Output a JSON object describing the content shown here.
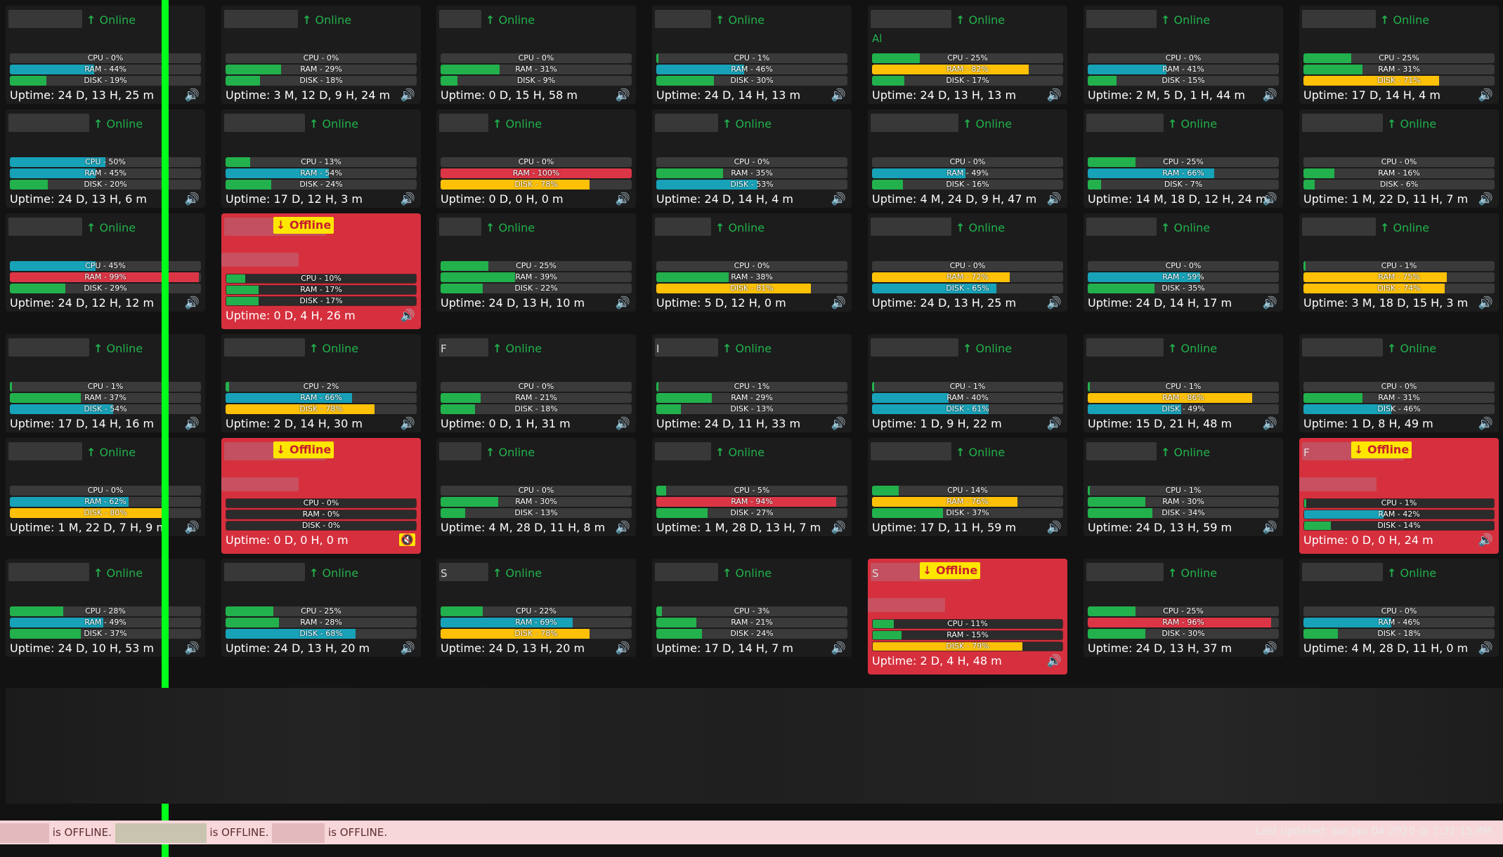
{
  "status_labels": {
    "online": "Online",
    "offline": "Offline"
  },
  "icons": {
    "online": "arrow-up-icon",
    "offline": "arrow-down-icon",
    "sound": "speaker-icon",
    "muted": "speaker-muted-icon"
  },
  "colors": {
    "green": "#22b14c",
    "teal": "#17a2b8",
    "yellow": "#ffc107",
    "red": "#dc3545",
    "offline_bg": "#d6303e",
    "offline_badge": "#ffe600",
    "monitor_line": "#00ff1a"
  },
  "servers": [
    {
      "status": "online",
      "cpu": 0,
      "ram": 44,
      "disk": 19,
      "uptime": "Uptime: 24 D, 13 H, 25 m"
    },
    {
      "status": "online",
      "cpu": 0,
      "ram": 29,
      "disk": 18,
      "uptime": "Uptime: 3 M, 12 D, 9 H, 24 m"
    },
    {
      "status": "online",
      "cpu": 0,
      "ram": 31,
      "disk": 9,
      "uptime": "Uptime: 0 D, 15 H, 58 m"
    },
    {
      "status": "online",
      "cpu": 1,
      "ram": 46,
      "disk": 30,
      "uptime": "Uptime: 24 D, 14 H, 13 m"
    },
    {
      "status": "online",
      "name_fragment": "Al",
      "cpu": 25,
      "ram": 82,
      "disk": 17,
      "uptime": "Uptime: 24 D, 13 H, 13 m"
    },
    {
      "status": "online",
      "cpu": 0,
      "ram": 41,
      "disk": 15,
      "uptime": "Uptime: 2 M, 5 D, 1 H, 44 m"
    },
    {
      "status": "online",
      "cpu": 25,
      "ram": 31,
      "disk": 71,
      "uptime": "Uptime: 17 D, 14 H, 4 m"
    },
    {
      "status": "online",
      "cpu": 50,
      "ram": 45,
      "disk": 20,
      "uptime": "Uptime: 24 D, 13 H, 6 m"
    },
    {
      "status": "online",
      "cpu": 13,
      "ram": 54,
      "disk": 24,
      "uptime": "Uptime: 17 D, 12 H, 3 m"
    },
    {
      "status": "online",
      "cpu": 0,
      "ram": 100,
      "disk": 78,
      "uptime": "Uptime: 0 D, 0 H, 0 m"
    },
    {
      "status": "online",
      "cpu": 0,
      "ram": 35,
      "disk": 53,
      "uptime": "Uptime: 24 D, 14 H, 4 m"
    },
    {
      "status": "online",
      "cpu": 0,
      "ram": 49,
      "disk": 16,
      "uptime": "Uptime: 4 M, 24 D, 9 H, 47 m"
    },
    {
      "status": "online",
      "cpu": 25,
      "ram": 66,
      "disk": 7,
      "uptime": "Uptime: 14 M, 18 D, 12 H, 24 m"
    },
    {
      "status": "online",
      "cpu": 0,
      "ram": 16,
      "disk": 6,
      "uptime": "Uptime: 1 M, 22 D, 11 H, 7 m"
    },
    {
      "status": "online",
      "cpu": 45,
      "ram": 99,
      "disk": 29,
      "uptime": "Uptime: 24 D, 12 H, 12 m"
    },
    {
      "status": "offline",
      "cpu": 10,
      "ram": 17,
      "disk": 17,
      "uptime": "Uptime: 0 D, 4 H, 26 m"
    },
    {
      "status": "online",
      "cpu": 25,
      "ram": 39,
      "disk": 22,
      "uptime": "Uptime: 24 D, 13 H, 10 m"
    },
    {
      "status": "online",
      "cpu": 0,
      "ram": 38,
      "disk": 81,
      "uptime": "Uptime: 5 D, 12 H, 0 m"
    },
    {
      "status": "online",
      "cpu": 0,
      "ram": 72,
      "disk": 65,
      "uptime": "Uptime: 24 D, 13 H, 25 m"
    },
    {
      "status": "online",
      "cpu": 0,
      "ram": 59,
      "disk": 35,
      "uptime": "Uptime: 24 D, 14 H, 17 m"
    },
    {
      "status": "online",
      "cpu": 1,
      "ram": 75,
      "disk": 74,
      "uptime": "Uptime: 3 M, 18 D, 15 H, 3 m"
    },
    {
      "status": "online",
      "cpu": 1,
      "ram": 37,
      "disk": 54,
      "uptime": "Uptime: 17 D, 14 H, 16 m"
    },
    {
      "status": "online",
      "cpu": 2,
      "ram": 66,
      "disk": 78,
      "uptime": "Uptime: 2 D, 14 H, 30 m"
    },
    {
      "status": "online",
      "name_fragment": "F",
      "cpu": 0,
      "ram": 21,
      "disk": 18,
      "uptime": "Uptime: 0 D, 1 H, 31 m"
    },
    {
      "status": "online",
      "name_fragment": "I",
      "cpu": 1,
      "ram": 29,
      "disk": 13,
      "uptime": "Uptime: 24 D, 11 H, 33 m"
    },
    {
      "status": "online",
      "cpu": 1,
      "ram": 40,
      "disk": 61,
      "uptime": "Uptime: 1 D, 9 H, 22 m"
    },
    {
      "status": "online",
      "cpu": 1,
      "ram": 86,
      "disk": 49,
      "uptime": "Uptime: 15 D, 21 H, 48 m"
    },
    {
      "status": "online",
      "cpu": 0,
      "ram": 31,
      "disk": 46,
      "uptime": "Uptime: 1 D, 8 H, 49 m"
    },
    {
      "status": "online",
      "cpu": 0,
      "ram": 62,
      "disk": 80,
      "uptime": "Uptime: 1 M, 22 D, 7 H, 9 m"
    },
    {
      "status": "offline",
      "cpu": 0,
      "ram": 0,
      "disk": 0,
      "uptime": "Uptime: 0 D, 0 H, 0 m",
      "muted": true
    },
    {
      "status": "online",
      "cpu": 0,
      "ram": 30,
      "disk": 13,
      "uptime": "Uptime: 4 M, 28 D, 11 H, 8 m"
    },
    {
      "status": "online",
      "cpu": 5,
      "ram": 94,
      "disk": 27,
      "uptime": "Uptime: 1 M, 28 D, 13 H, 7 m"
    },
    {
      "status": "online",
      "cpu": 14,
      "ram": 76,
      "disk": 37,
      "uptime": "Uptime: 17 D, 11 H, 59 m"
    },
    {
      "status": "online",
      "cpu": 1,
      "ram": 30,
      "disk": 34,
      "uptime": "Uptime: 24 D, 13 H, 59 m"
    },
    {
      "status": "offline",
      "name_fragment": "F",
      "cpu": 1,
      "ram": 42,
      "disk": 14,
      "uptime": "Uptime: 0 D, 0 H, 24 m"
    },
    {
      "status": "online",
      "cpu": 28,
      "ram": 49,
      "disk": 37,
      "uptime": "Uptime: 24 D, 10 H, 53 m"
    },
    {
      "status": "online",
      "cpu": 25,
      "ram": 28,
      "disk": 68,
      "uptime": "Uptime: 24 D, 13 H, 20 m"
    },
    {
      "status": "online",
      "name_fragment": "S",
      "cpu": 22,
      "ram": 69,
      "disk": 78,
      "uptime": "Uptime: 24 D, 13 H, 20 m"
    },
    {
      "status": "online",
      "cpu": 3,
      "ram": 21,
      "disk": 24,
      "uptime": "Uptime: 17 D, 14 H, 7 m"
    },
    {
      "status": "offline",
      "name_fragment": "S",
      "cpu": 11,
      "ram": 15,
      "disk": 79,
      "uptime": "Uptime: 2 D, 4 H, 48 m"
    },
    {
      "status": "online",
      "cpu": 25,
      "ram": 96,
      "disk": 30,
      "uptime": "Uptime: 24 D, 13 H, 37 m"
    },
    {
      "status": "online",
      "cpu": 0,
      "ram": 46,
      "disk": 18,
      "uptime": "Uptime: 4 M, 28 D, 11 H, 0 m"
    }
  ],
  "ticker": {
    "offline_text": "is OFFLINE.",
    "count": 3
  },
  "last_updated": "Last updated: Sat Jan 04 2020 @ 7:31:15 PM"
}
